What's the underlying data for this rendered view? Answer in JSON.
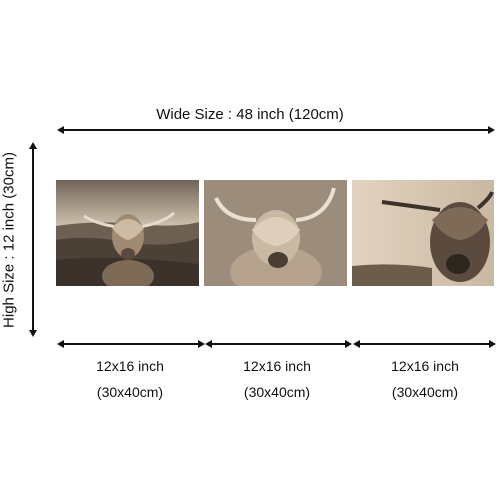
{
  "wide_size": "Wide Size : 48 inch   (120cm)",
  "high_size": "High  Size : 12 inch  (30cm)",
  "panels": [
    {
      "size_in": "12x16 inch",
      "size_cm": "(30x40cm)"
    },
    {
      "size_in": "12x16 inch",
      "size_cm": "(30x40cm)"
    },
    {
      "size_in": "12x16 inch",
      "size_cm": "(30x40cm)"
    }
  ],
  "colors": {
    "sepia_light": "#d8c8b2",
    "sepia_mid": "#9a8670",
    "sepia_dark": "#3e342b"
  }
}
